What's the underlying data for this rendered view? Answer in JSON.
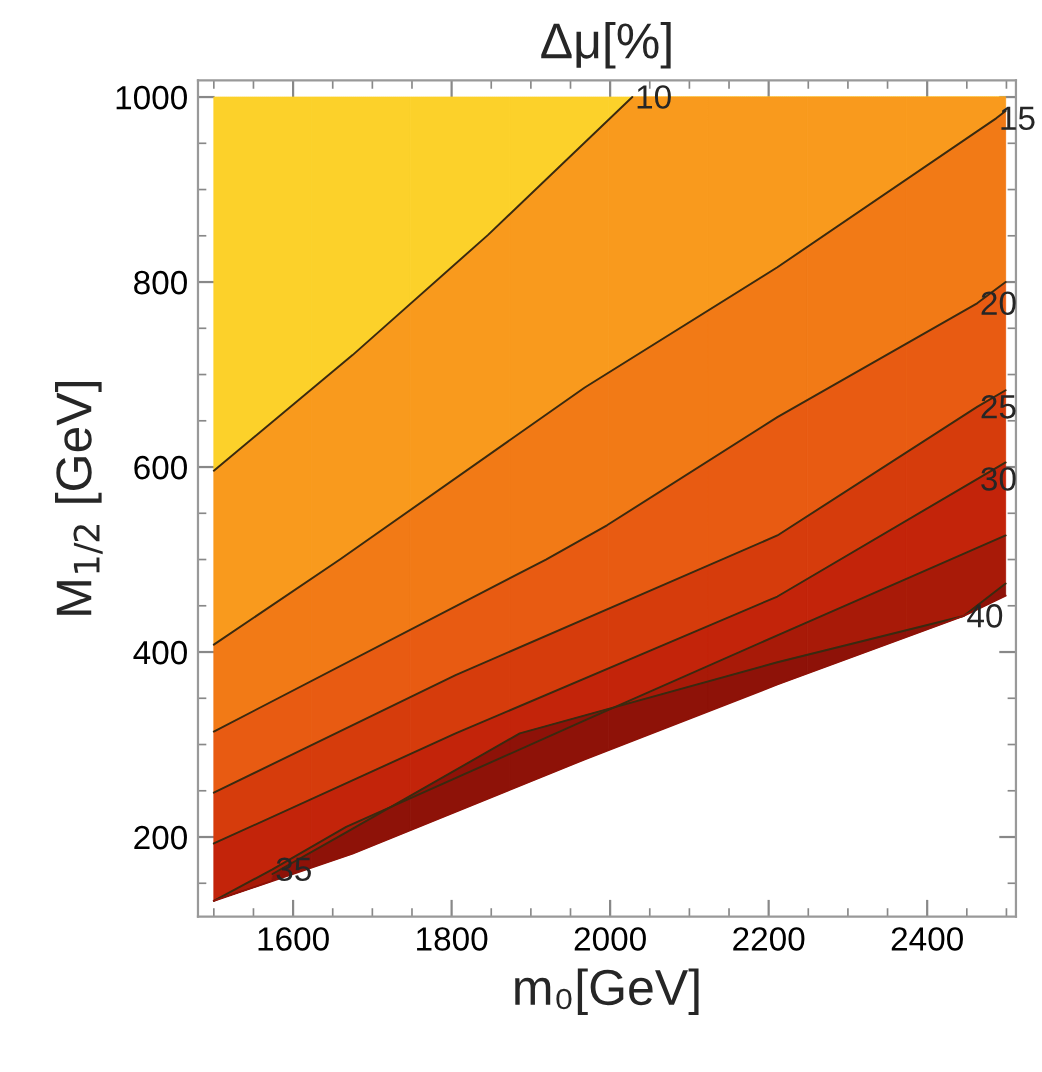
{
  "chart_data": {
    "type": "line",
    "title": "Δμ[%]",
    "xlabel": "m₀[GeV]",
    "ylabel": "M$_{1/2}$ [GeV]",
    "xlim": [
      1480,
      2512
    ],
    "ylim": [
      114,
      1018
    ],
    "xticks": [
      1600,
      1800,
      2000,
      2200,
      2400
    ],
    "yticks": [
      200,
      400,
      600,
      800,
      1000
    ],
    "grid": false,
    "legend": false,
    "line_style": "solid",
    "marker": "none",
    "series": [
      {
        "color": "#3a2a10",
        "x": [
          1500,
          1675,
          1846,
          2028
        ],
        "values": [
          596,
          721,
          851,
          1000
        ]
      },
      {
        "color": "#3a2a10",
        "x": [
          1500,
          1659,
          1968,
          2211,
          2487,
          2499
        ],
        "values": [
          408,
          500,
          686,
          816,
          977,
          985
        ]
      },
      {
        "color": "#3a2a10",
        "x": [
          1500,
          1919,
          1996,
          2211,
          2463,
          2499
        ],
        "values": [
          314,
          500,
          537,
          654,
          777,
          800
        ]
      },
      {
        "color": "#3a2a10",
        "x": [
          1500,
          1805,
          2211,
          2463,
          2499
        ],
        "values": [
          248,
          375,
          526,
          665,
          683
        ]
      },
      {
        "color": "#3a2a10",
        "x": [
          1500,
          1805,
          2211,
          2463,
          2499
        ],
        "values": [
          193,
          312,
          460,
          587,
          605
        ]
      },
      {
        "color": "#3a2a10",
        "x": [
          1500,
          1574,
          1667,
          1968,
          2211,
          2499
        ],
        "values": [
          131,
          165,
          211,
          326,
          418,
          526
        ]
      },
      {
        "color": "#3a2a10",
        "x": [
          1574,
          1667,
          1886,
          2211,
          2446,
          2499
        ],
        "values": [
          160,
          205,
          312,
          389,
          439,
          474
        ]
      },
      {
        "color": "#8e1208",
        "x": [
          1500,
          1675,
          1968,
          2211,
          2446,
          2499
        ],
        "values": [
          131,
          182,
          284,
          365,
          439,
          461
        ]
      }
    ],
    "annotations": [
      {
        "text": "10",
        "x": 2028,
        "y": 1000
      },
      {
        "text": "15",
        "x": 2487,
        "y": 977
      },
      {
        "text": "20",
        "x": 2463,
        "y": 777
      },
      {
        "text": "25",
        "x": 2463,
        "y": 665
      },
      {
        "text": "30",
        "x": 2463,
        "y": 587
      },
      {
        "text": "35",
        "x": 1574,
        "y": 165
      },
      {
        "text": "40",
        "x": 2446,
        "y": 439
      }
    ]
  }
}
